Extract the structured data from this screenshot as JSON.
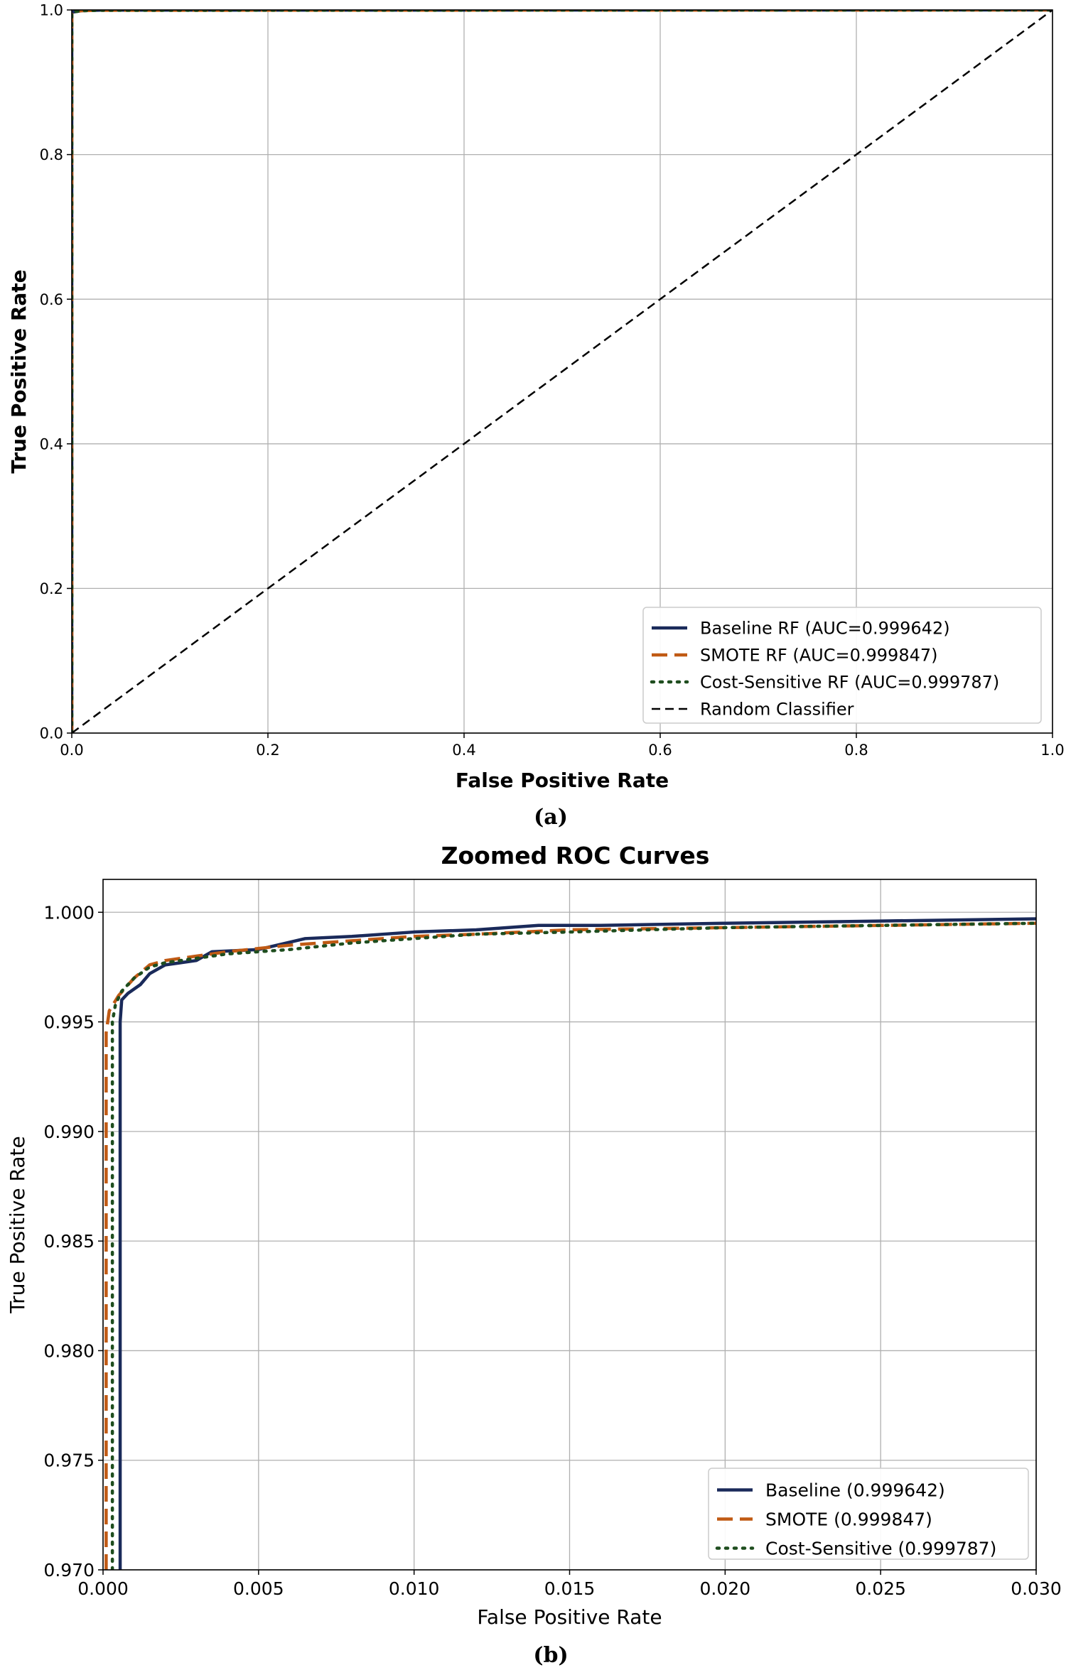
{
  "chart_data": [
    {
      "panel_label": "(a)",
      "type": "line",
      "title": "",
      "xlabel": "False Positive Rate",
      "ylabel": "True Positive Rate",
      "xlim": [
        0.0,
        1.0
      ],
      "ylim": [
        0.0,
        1.0
      ],
      "x_ticks": [
        "0.0",
        "0.2",
        "0.4",
        "0.6",
        "0.8",
        "1.0"
      ],
      "y_ticks": [
        "0.0",
        "0.2",
        "0.4",
        "0.6",
        "0.8",
        "1.0"
      ],
      "grid": true,
      "legend_position": "lower-right",
      "series": [
        {
          "name": "Baseline RF (AUC=0.999642)",
          "color": "#1a2a5a",
          "style": "solid",
          "x": [
            0.0,
            0.0,
            0.0005,
            0.001,
            0.01,
            0.03,
            1.0
          ],
          "y": [
            0.0,
            0.995,
            0.996,
            0.997,
            0.999,
            0.9997,
            1.0
          ]
        },
        {
          "name": "SMOTE RF (AUC=0.999847)",
          "color": "#c05a14",
          "style": "dashed",
          "x": [
            0.0,
            0.0,
            0.0003,
            0.001,
            0.01,
            0.03,
            1.0
          ],
          "y": [
            0.0,
            0.995,
            0.996,
            0.997,
            0.999,
            0.9995,
            1.0
          ]
        },
        {
          "name": "Cost-Sensitive RF (AUC=0.999787)",
          "color": "#1e4d1e",
          "style": "dotted",
          "x": [
            0.0,
            0.0,
            0.0003,
            0.001,
            0.01,
            0.03,
            1.0
          ],
          "y": [
            0.0,
            0.995,
            0.996,
            0.997,
            0.999,
            0.9995,
            1.0
          ]
        },
        {
          "name": "Random Classifier",
          "color": "#000000",
          "style": "thin-dashed",
          "x": [
            0.0,
            1.0
          ],
          "y": [
            0.0,
            1.0
          ]
        }
      ]
    },
    {
      "panel_label": "(b)",
      "type": "line",
      "title": "Zoomed ROC Curves",
      "xlabel": "False Positive Rate",
      "ylabel": "True Positive Rate",
      "xlim": [
        0.0,
        0.03
      ],
      "ylim": [
        0.97,
        1.0015
      ],
      "x_ticks": [
        "0.000",
        "0.005",
        "0.010",
        "0.015",
        "0.020",
        "0.025",
        "0.030"
      ],
      "y_ticks": [
        "0.970",
        "0.975",
        "0.980",
        "0.985",
        "0.990",
        "0.995",
        "1.000"
      ],
      "grid": true,
      "legend_position": "lower-right",
      "series": [
        {
          "name": "Baseline (0.999642)",
          "color": "#1a2a5a",
          "style": "solid",
          "x": [
            0.00055,
            0.00055,
            0.0006,
            0.0008,
            0.0012,
            0.0015,
            0.002,
            0.003,
            0.0035,
            0.005,
            0.0065,
            0.008,
            0.01,
            0.012,
            0.014,
            0.016,
            0.02,
            0.025,
            0.03
          ],
          "y": [
            0.97,
            0.995,
            0.996,
            0.9963,
            0.9967,
            0.9972,
            0.9976,
            0.9978,
            0.9982,
            0.9983,
            0.9988,
            0.9989,
            0.9991,
            0.9992,
            0.9994,
            0.9994,
            0.9995,
            0.9996,
            0.9997
          ]
        },
        {
          "name": "SMOTE (0.999847)",
          "color": "#c05a14",
          "style": "dashed",
          "x": [
            0.0001,
            0.0001,
            0.0002,
            0.0005,
            0.001,
            0.0015,
            0.002,
            0.003,
            0.004,
            0.006,
            0.008,
            0.01,
            0.012,
            0.015,
            0.02,
            0.025,
            0.03
          ],
          "y": [
            0.97,
            0.9945,
            0.9955,
            0.9962,
            0.997,
            0.9976,
            0.9978,
            0.998,
            0.9982,
            0.9985,
            0.9987,
            0.9989,
            0.999,
            0.9992,
            0.9993,
            0.9994,
            0.9995
          ]
        },
        {
          "name": "Cost-Sensitive (0.999787)",
          "color": "#1e4d1e",
          "style": "dotted",
          "x": [
            0.0003,
            0.0003,
            0.0004,
            0.0006,
            0.001,
            0.0015,
            0.002,
            0.003,
            0.004,
            0.006,
            0.008,
            0.01,
            0.012,
            0.015,
            0.02,
            0.025,
            0.03
          ],
          "y": [
            0.97,
            0.995,
            0.9958,
            0.9964,
            0.997,
            0.9975,
            0.9977,
            0.9979,
            0.9981,
            0.9983,
            0.9986,
            0.9988,
            0.999,
            0.9991,
            0.9993,
            0.9994,
            0.9995
          ]
        }
      ]
    }
  ]
}
